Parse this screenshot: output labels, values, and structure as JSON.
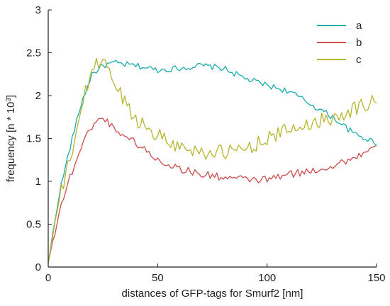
{
  "chart_data": {
    "type": "line",
    "xlabel": "distances of GFP-tags for Smurf2 [nm]",
    "ylabel": {
      "prefix": "frequency [n * 10",
      "sup": "3",
      "suffix": "]"
    },
    "xlim": [
      0,
      150
    ],
    "ylim": [
      0,
      3
    ],
    "xticks": [
      0,
      50,
      100,
      150
    ],
    "yticks": [
      0,
      0.5,
      1,
      1.5,
      2,
      2.5,
      3
    ],
    "ytick_labels": [
      "0",
      "0.5",
      "1",
      "1.5",
      "2",
      "2.5",
      "3"
    ],
    "grid": false,
    "legend_position": "top-right",
    "x": [
      0,
      5,
      10,
      15,
      20,
      25,
      30,
      40,
      50,
      60,
      70,
      80,
      90,
      100,
      110,
      120,
      130,
      140,
      150
    ],
    "series": [
      {
        "name": "a",
        "color": "#1aabab",
        "values": [
          0.05,
          0.85,
          1.4,
          1.9,
          2.25,
          2.35,
          2.38,
          2.35,
          2.3,
          2.32,
          2.35,
          2.32,
          2.2,
          2.12,
          2.05,
          1.9,
          1.75,
          1.55,
          1.45
        ]
      },
      {
        "name": "b",
        "color": "#cc4b4b",
        "values": [
          0.05,
          0.65,
          1.05,
          1.4,
          1.65,
          1.75,
          1.62,
          1.45,
          1.25,
          1.15,
          1.08,
          1.05,
          1.02,
          1.02,
          1.08,
          1.12,
          1.18,
          1.28,
          1.4
        ]
      },
      {
        "name": "c",
        "color": "#b5b52e",
        "values": [
          0.05,
          0.78,
          1.25,
          1.85,
          2.3,
          2.45,
          2.15,
          1.72,
          1.55,
          1.4,
          1.35,
          1.33,
          1.38,
          1.5,
          1.6,
          1.68,
          1.75,
          1.85,
          1.95
        ]
      }
    ]
  }
}
